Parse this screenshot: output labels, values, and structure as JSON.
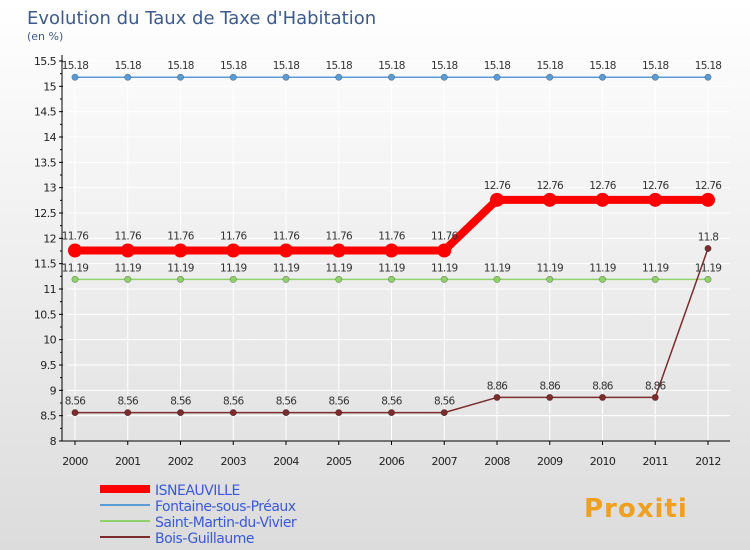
{
  "title": "Evolution du Taux de Taxe d'Habitation",
  "unit": "(en %)",
  "logo_text": "Proxiti",
  "colors": {
    "background_top": "#ffffff",
    "background_bottom": "#dcdcdc",
    "axis": "#000000",
    "grid": "#ffffff",
    "title": "#3d5a8c",
    "legend_text": "#3a5ad6"
  },
  "chart_data": {
    "type": "line",
    "title": "Evolution du Taux de Taxe d'Habitation",
    "ylabel": "(en %)",
    "xlabel": "",
    "ylim": [
      8,
      15.5
    ],
    "yticks": [
      "8",
      "8.5",
      "9",
      "9.5",
      "10",
      "10.5",
      "11",
      "11.5",
      "12",
      "12.5",
      "13",
      "13.5",
      "14",
      "14.5",
      "15",
      "15.5"
    ],
    "categories": [
      "2000",
      "2001",
      "2002",
      "2003",
      "2004",
      "2005",
      "2006",
      "2007",
      "2008",
      "2009",
      "2010",
      "2011",
      "2012"
    ],
    "series": [
      {
        "name": "ISNEAUVILLE",
        "color": "#ff0000",
        "values": [
          11.76,
          11.76,
          11.76,
          11.76,
          11.76,
          11.76,
          11.76,
          11.76,
          12.76,
          12.76,
          12.76,
          12.76,
          12.76
        ],
        "labels": [
          "11.76",
          "11.76",
          "11.76",
          "11.76",
          "11.76",
          "11.76",
          "11.76",
          "11.76",
          "12.76",
          "12.76",
          "12.76",
          "12.76",
          "12.76"
        ]
      },
      {
        "name": "Fontaine-sous-Préaux",
        "color": "#5b9bd5",
        "values": [
          15.18,
          15.18,
          15.18,
          15.18,
          15.18,
          15.18,
          15.18,
          15.18,
          15.18,
          15.18,
          15.18,
          15.18,
          15.18
        ],
        "labels": [
          "15.18",
          "15.18",
          "15.18",
          "15.18",
          "15.18",
          "15.18",
          "15.18",
          "15.18",
          "15.18",
          "15.18",
          "15.18",
          "15.18",
          "15.18"
        ]
      },
      {
        "name": "Saint-Martin-du-Vivier",
        "color": "#8fd16a",
        "values": [
          11.19,
          11.19,
          11.19,
          11.19,
          11.19,
          11.19,
          11.19,
          11.19,
          11.19,
          11.19,
          11.19,
          11.19,
          11.19
        ],
        "labels": [
          "11.19",
          "11.19",
          "11.19",
          "11.19",
          "11.19",
          "11.19",
          "11.19",
          "11.19",
          "11.19",
          "11.19",
          "11.19",
          "11.19",
          "11.19"
        ]
      },
      {
        "name": "Bois-Guillaume",
        "color": "#7b2c2c",
        "values": [
          8.56,
          8.56,
          8.56,
          8.56,
          8.56,
          8.56,
          8.56,
          8.56,
          8.86,
          8.86,
          8.86,
          8.86,
          11.8
        ],
        "labels": [
          "8.56",
          "8.56",
          "8.56",
          "8.56",
          "8.56",
          "8.56",
          "8.56",
          "8.56",
          "8.86",
          "8.86",
          "8.86",
          "8.86",
          "11.8"
        ]
      }
    ]
  }
}
